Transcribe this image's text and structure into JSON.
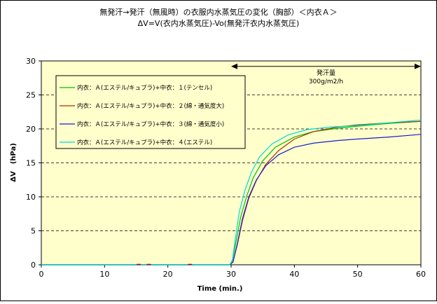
{
  "chart_data": {
    "type": "line",
    "title_line1": "無発汗→発汗（無風時）の衣服内水蒸気圧の変化（胸部）＜内衣Ａ＞",
    "title_line2": "ΔV=V(衣内水蒸気圧)-Vo(無発汗衣内水蒸気圧)",
    "xlabel": "Time (min.)",
    "ylabel": "ΔV　(hPa)",
    "xlim": [
      0,
      60
    ],
    "ylim": [
      0,
      30
    ],
    "xticks": [
      0,
      10,
      20,
      30,
      40,
      50,
      60
    ],
    "yticks": [
      0,
      5,
      10,
      15,
      20,
      25,
      30
    ],
    "grid": "horizontal dashed",
    "legend_position": "top-left",
    "annotation": {
      "line1": "発汗量",
      "line2": "300g/m2/h",
      "x_start": 30,
      "x_end": 60,
      "y": 29.2
    },
    "series": [
      {
        "name": "内衣：Ａ(エステル/キュプラ)+中衣：１(テンセル)",
        "color": "#00c000",
        "x": [
          0,
          29.8,
          30.2,
          30.8,
          31.5,
          32.5,
          33.5,
          35,
          37,
          40,
          43,
          47,
          50,
          55,
          60
        ],
        "y": [
          0,
          0,
          0.6,
          3.5,
          7,
          10.2,
          12.8,
          15.3,
          17.3,
          18.8,
          19.6,
          20.1,
          20.4,
          20.8,
          21.1
        ]
      },
      {
        "name": "内衣：Ａ(エステル/キュプラ)+中衣：２(綿・通気度大)",
        "color": "#a83200",
        "x": [
          0,
          29.8,
          30.3,
          31,
          31.8,
          32.8,
          34,
          35.5,
          37.5,
          40,
          43,
          47,
          50,
          55,
          60
        ],
        "y": [
          0,
          0,
          0.4,
          3,
          6.5,
          9.8,
          12.4,
          14.8,
          16.8,
          18.5,
          19.6,
          20.3,
          20.6,
          20.9,
          21.1
        ]
      },
      {
        "name": "内衣：Ａ(エステル/キュプラ)+中衣：３(綿・通気度小)",
        "color": "#1c1cd0",
        "x": [
          0,
          29.8,
          30.3,
          31,
          31.8,
          32.8,
          34,
          35.5,
          37.5,
          40,
          43,
          47,
          50,
          55,
          60
        ],
        "y": [
          0,
          0,
          0.4,
          3.2,
          6.8,
          10,
          12.5,
          14.6,
          16.2,
          17.3,
          17.9,
          18.3,
          18.5,
          18.8,
          19.2
        ]
      },
      {
        "name": "内衣：Ａ(エステル/キュプラ)+中衣：４(エステル)",
        "color": "#00d8d8",
        "x": [
          0,
          29.8,
          30.2,
          30.7,
          31.3,
          32.2,
          33.2,
          34.5,
          36.5,
          39,
          42,
          46,
          50,
          55,
          60
        ],
        "y": [
          0,
          0,
          0.7,
          4,
          7.8,
          11,
          13.6,
          15.9,
          17.8,
          19.1,
          19.9,
          20.3,
          20.5,
          20.9,
          21.3
        ]
      }
    ],
    "baseline_marks": [
      {
        "x": 15.4,
        "y": 0
      },
      {
        "x": 17,
        "y": 0
      },
      {
        "x": 23.5,
        "y": 0
      }
    ]
  }
}
